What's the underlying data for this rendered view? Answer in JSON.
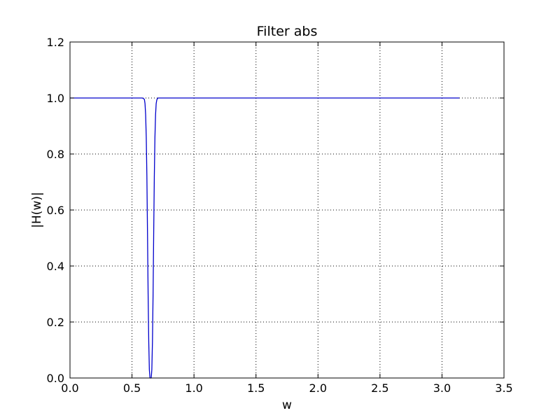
{
  "chart_data": {
    "type": "line",
    "title": "Filter abs",
    "xlabel": "w",
    "ylabel": "|H(w)|",
    "xlim": [
      0.0,
      3.5
    ],
    "ylim": [
      0.0,
      1.2
    ],
    "xticks": [
      "0.0",
      "0.5",
      "1.0",
      "1.5",
      "2.0",
      "2.5",
      "3.0",
      "3.5"
    ],
    "yticks": [
      "0.0",
      "0.2",
      "0.4",
      "0.6",
      "0.8",
      "1.0",
      "1.2"
    ],
    "grid": true,
    "grid_style": "dotted",
    "line_color": "#0000cc",
    "series": [
      {
        "x": [
          0.0,
          0.2,
          0.4,
          0.55,
          0.58,
          0.59,
          0.6,
          0.605,
          0.61,
          0.615,
          0.62,
          0.625,
          0.63,
          0.635,
          0.64,
          0.645,
          0.65,
          0.655,
          0.66,
          0.665,
          0.67,
          0.675,
          0.68,
          0.685,
          0.69,
          0.695,
          0.7,
          0.705,
          0.71,
          0.72,
          0.74,
          0.8,
          1.0,
          1.5,
          2.0,
          2.5,
          3.0,
          3.14
        ],
        "y": [
          1.0,
          1.0,
          1.0,
          1.0,
          1.0,
          0.999,
          0.995,
          0.98,
          0.94,
          0.86,
          0.72,
          0.52,
          0.3,
          0.13,
          0.03,
          0.0,
          0.0,
          0.0,
          0.03,
          0.13,
          0.3,
          0.52,
          0.72,
          0.86,
          0.94,
          0.98,
          0.993,
          0.998,
          1.0,
          1.0,
          1.0,
          1.0,
          1.0,
          1.0,
          1.0,
          1.0,
          1.0,
          1.0
        ]
      }
    ]
  }
}
